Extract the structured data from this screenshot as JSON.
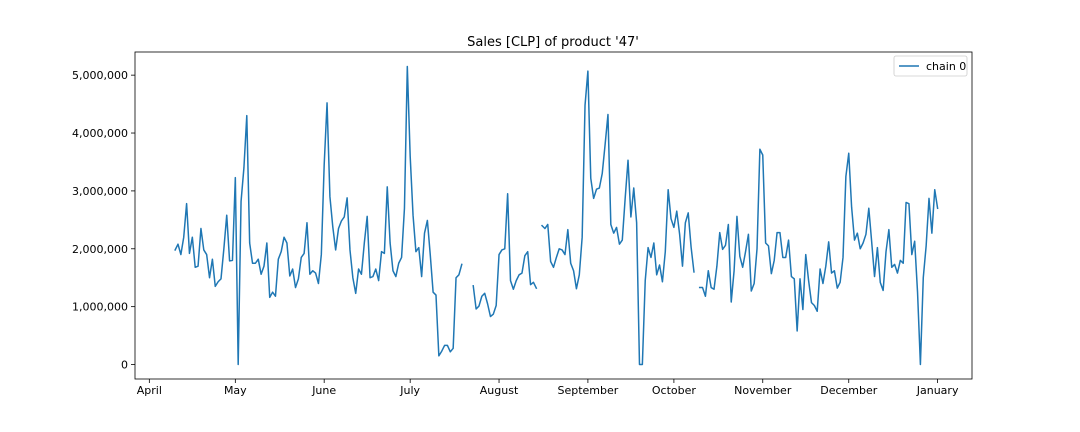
{
  "chart_data": {
    "type": "line",
    "title": "Sales [CLP] of product '47'",
    "xlabel": "",
    "ylabel": "",
    "x_ticks": [
      "April",
      "May",
      "June",
      "July",
      "August",
      "September",
      "October",
      "November",
      "December",
      "January"
    ],
    "y_ticks": [
      "0",
      "1,000,000",
      "2,000,000",
      "3,000,000",
      "4,000,000",
      "5,000,000"
    ],
    "y_tick_values": [
      0,
      1000000,
      2000000,
      3000000,
      4000000,
      5000000
    ],
    "xlim": [
      "2020-03-27",
      "2021-01-13"
    ],
    "ylim": [
      -250000,
      5400000
    ],
    "grid": false,
    "legend_position": "top-right",
    "colors": {
      "series": "#1f77b4",
      "axes": "#000000",
      "background": "#ffffff"
    },
    "series": [
      {
        "name": "chain 0",
        "points": [
          [
            "2020-04-10",
            1980000
          ],
          [
            "2020-04-11",
            2080000
          ],
          [
            "2020-04-12",
            1900000
          ],
          [
            "2020-04-13",
            2200000
          ],
          [
            "2020-04-14",
            2780000
          ],
          [
            "2020-04-15",
            1920000
          ],
          [
            "2020-04-16",
            2200000
          ],
          [
            "2020-04-17",
            1680000
          ],
          [
            "2020-04-18",
            1700000
          ],
          [
            "2020-04-19",
            2350000
          ],
          [
            "2020-04-20",
            1980000
          ],
          [
            "2020-04-21",
            1900000
          ],
          [
            "2020-04-22",
            1500000
          ],
          [
            "2020-04-23",
            1820000
          ],
          [
            "2020-04-24",
            1350000
          ],
          [
            "2020-04-25",
            1430000
          ],
          [
            "2020-04-26",
            1480000
          ],
          [
            "2020-04-27",
            2000000
          ],
          [
            "2020-04-28",
            2580000
          ],
          [
            "2020-04-29",
            1790000
          ],
          [
            "2020-04-30",
            1800000
          ],
          [
            "2020-05-01",
            3230000
          ],
          [
            "2020-05-02",
            0
          ],
          [
            "2020-05-03",
            2820000
          ],
          [
            "2020-05-04",
            3400000
          ],
          [
            "2020-05-05",
            4300000
          ],
          [
            "2020-05-06",
            2100000
          ],
          [
            "2020-05-07",
            1750000
          ],
          [
            "2020-05-08",
            1750000
          ],
          [
            "2020-05-09",
            1820000
          ],
          [
            "2020-05-10",
            1560000
          ],
          [
            "2020-05-11",
            1700000
          ],
          [
            "2020-05-12",
            2100000
          ],
          [
            "2020-05-13",
            1160000
          ],
          [
            "2020-05-14",
            1250000
          ],
          [
            "2020-05-15",
            1180000
          ],
          [
            "2020-05-16",
            1820000
          ],
          [
            "2020-05-17",
            1950000
          ],
          [
            "2020-05-18",
            2200000
          ],
          [
            "2020-05-19",
            2100000
          ],
          [
            "2020-05-20",
            1530000
          ],
          [
            "2020-05-21",
            1650000
          ],
          [
            "2020-05-22",
            1330000
          ],
          [
            "2020-05-23",
            1480000
          ],
          [
            "2020-05-24",
            1850000
          ],
          [
            "2020-05-25",
            1920000
          ],
          [
            "2020-05-26",
            2450000
          ],
          [
            "2020-05-27",
            1560000
          ],
          [
            "2020-05-28",
            1620000
          ],
          [
            "2020-05-29",
            1580000
          ],
          [
            "2020-05-30",
            1400000
          ],
          [
            "2020-05-31",
            1900000
          ],
          [
            "2020-06-01",
            3450000
          ],
          [
            "2020-06-02",
            4520000
          ],
          [
            "2020-06-03",
            2900000
          ],
          [
            "2020-06-04",
            2380000
          ],
          [
            "2020-06-05",
            1980000
          ],
          [
            "2020-06-06",
            2350000
          ],
          [
            "2020-06-07",
            2480000
          ],
          [
            "2020-06-08",
            2550000
          ],
          [
            "2020-06-09",
            2880000
          ],
          [
            "2020-06-10",
            1980000
          ],
          [
            "2020-06-11",
            1500000
          ],
          [
            "2020-06-12",
            1230000
          ],
          [
            "2020-06-13",
            1650000
          ],
          [
            "2020-06-14",
            1560000
          ],
          [
            "2020-06-15",
            2100000
          ],
          [
            "2020-06-16",
            2560000
          ],
          [
            "2020-06-17",
            1500000
          ],
          [
            "2020-06-18",
            1520000
          ],
          [
            "2020-06-19",
            1650000
          ],
          [
            "2020-06-20",
            1450000
          ],
          [
            "2020-06-21",
            1950000
          ],
          [
            "2020-06-22",
            1920000
          ],
          [
            "2020-06-23",
            3070000
          ],
          [
            "2020-06-24",
            2100000
          ],
          [
            "2020-06-25",
            1620000
          ],
          [
            "2020-06-26",
            1520000
          ],
          [
            "2020-06-27",
            1750000
          ],
          [
            "2020-06-28",
            1850000
          ],
          [
            "2020-06-29",
            2700000
          ],
          [
            "2020-06-30",
            5150000
          ],
          [
            "2020-07-01",
            3600000
          ],
          [
            "2020-07-02",
            2580000
          ],
          [
            "2020-07-03",
            1950000
          ],
          [
            "2020-07-04",
            2020000
          ],
          [
            "2020-07-05",
            1520000
          ],
          [
            "2020-07-06",
            2270000
          ],
          [
            "2020-07-07",
            2490000
          ],
          [
            "2020-07-08",
            1900000
          ],
          [
            "2020-07-09",
            1250000
          ],
          [
            "2020-07-10",
            1200000
          ],
          [
            "2020-07-11",
            150000
          ],
          [
            "2020-07-12",
            230000
          ],
          [
            "2020-07-13",
            330000
          ],
          [
            "2020-07-14",
            330000
          ],
          [
            "2020-07-15",
            220000
          ],
          [
            "2020-07-16",
            280000
          ],
          [
            "2020-07-17",
            1500000
          ],
          [
            "2020-07-18",
            1550000
          ],
          [
            "2020-07-19",
            1730000
          ],
          [
            "2020-07-23",
            1360000
          ],
          [
            "2020-07-24",
            960000
          ],
          [
            "2020-07-25",
            1010000
          ],
          [
            "2020-07-26",
            1180000
          ],
          [
            "2020-07-27",
            1230000
          ],
          [
            "2020-07-28",
            1050000
          ],
          [
            "2020-07-29",
            830000
          ],
          [
            "2020-07-30",
            870000
          ],
          [
            "2020-07-31",
            1020000
          ],
          [
            "2020-08-01",
            1900000
          ],
          [
            "2020-08-02",
            1980000
          ],
          [
            "2020-08-03",
            2000000
          ],
          [
            "2020-08-04",
            2950000
          ],
          [
            "2020-08-05",
            1450000
          ],
          [
            "2020-08-06",
            1300000
          ],
          [
            "2020-08-07",
            1450000
          ],
          [
            "2020-08-08",
            1550000
          ],
          [
            "2020-08-09",
            1580000
          ],
          [
            "2020-08-10",
            1880000
          ],
          [
            "2020-08-11",
            1950000
          ],
          [
            "2020-08-12",
            1380000
          ],
          [
            "2020-08-13",
            1420000
          ],
          [
            "2020-08-14",
            1320000
          ],
          [
            "2020-08-16",
            2400000
          ],
          [
            "2020-08-17",
            2350000
          ],
          [
            "2020-08-18",
            2420000
          ],
          [
            "2020-08-19",
            1780000
          ],
          [
            "2020-08-20",
            1680000
          ],
          [
            "2020-08-21",
            1850000
          ],
          [
            "2020-08-22",
            2000000
          ],
          [
            "2020-08-23",
            1980000
          ],
          [
            "2020-08-24",
            1900000
          ],
          [
            "2020-08-25",
            2330000
          ],
          [
            "2020-08-26",
            1750000
          ],
          [
            "2020-08-27",
            1620000
          ],
          [
            "2020-08-28",
            1310000
          ],
          [
            "2020-08-29",
            1550000
          ],
          [
            "2020-08-30",
            2200000
          ],
          [
            "2020-08-31",
            4480000
          ],
          [
            "2020-09-01",
            5070000
          ],
          [
            "2020-09-02",
            3220000
          ],
          [
            "2020-09-03",
            2870000
          ],
          [
            "2020-09-04",
            3030000
          ],
          [
            "2020-09-05",
            3050000
          ],
          [
            "2020-09-06",
            3300000
          ],
          [
            "2020-09-07",
            3800000
          ],
          [
            "2020-09-08",
            4320000
          ],
          [
            "2020-09-09",
            2420000
          ],
          [
            "2020-09-10",
            2270000
          ],
          [
            "2020-09-11",
            2370000
          ],
          [
            "2020-09-12",
            2080000
          ],
          [
            "2020-09-13",
            2150000
          ],
          [
            "2020-09-14",
            2870000
          ],
          [
            "2020-09-15",
            3530000
          ],
          [
            "2020-09-16",
            2550000
          ],
          [
            "2020-09-17",
            3050000
          ],
          [
            "2020-09-18",
            2450000
          ],
          [
            "2020-09-19",
            0
          ],
          [
            "2020-09-20",
            0
          ],
          [
            "2020-09-21",
            1450000
          ],
          [
            "2020-09-22",
            2020000
          ],
          [
            "2020-09-23",
            1850000
          ],
          [
            "2020-09-24",
            2100000
          ],
          [
            "2020-09-25",
            1550000
          ],
          [
            "2020-09-26",
            1720000
          ],
          [
            "2020-09-27",
            1430000
          ],
          [
            "2020-09-28",
            1950000
          ],
          [
            "2020-09-29",
            3020000
          ],
          [
            "2020-09-30",
            2520000
          ],
          [
            "2020-10-01",
            2370000
          ],
          [
            "2020-10-02",
            2650000
          ],
          [
            "2020-10-03",
            2250000
          ],
          [
            "2020-10-04",
            1700000
          ],
          [
            "2020-10-05",
            2450000
          ],
          [
            "2020-10-06",
            2620000
          ],
          [
            "2020-10-07",
            2030000
          ],
          [
            "2020-10-08",
            1600000
          ],
          [
            "2020-10-10",
            1330000
          ],
          [
            "2020-10-11",
            1330000
          ],
          [
            "2020-10-12",
            1180000
          ],
          [
            "2020-10-13",
            1620000
          ],
          [
            "2020-10-14",
            1330000
          ],
          [
            "2020-10-15",
            1300000
          ],
          [
            "2020-10-16",
            1700000
          ],
          [
            "2020-10-17",
            2280000
          ],
          [
            "2020-10-18",
            1990000
          ],
          [
            "2020-10-19",
            2060000
          ],
          [
            "2020-10-20",
            2420000
          ],
          [
            "2020-10-21",
            1080000
          ],
          [
            "2020-10-22",
            1620000
          ],
          [
            "2020-10-23",
            2560000
          ],
          [
            "2020-10-24",
            1870000
          ],
          [
            "2020-10-25",
            1680000
          ],
          [
            "2020-10-26",
            1950000
          ],
          [
            "2020-10-27",
            2250000
          ],
          [
            "2020-10-28",
            1270000
          ],
          [
            "2020-10-29",
            1400000
          ],
          [
            "2020-10-30",
            2000000
          ],
          [
            "2020-10-31",
            3720000
          ],
          [
            "2020-11-01",
            3620000
          ],
          [
            "2020-11-02",
            2100000
          ],
          [
            "2020-11-03",
            2050000
          ],
          [
            "2020-11-04",
            1570000
          ],
          [
            "2020-11-05",
            1800000
          ],
          [
            "2020-11-06",
            2280000
          ],
          [
            "2020-11-07",
            2280000
          ],
          [
            "2020-11-08",
            1850000
          ],
          [
            "2020-11-09",
            1850000
          ],
          [
            "2020-11-10",
            2150000
          ],
          [
            "2020-11-11",
            1520000
          ],
          [
            "2020-11-12",
            1480000
          ],
          [
            "2020-11-13",
            580000
          ],
          [
            "2020-11-14",
            1480000
          ],
          [
            "2020-11-15",
            950000
          ],
          [
            "2020-11-16",
            1900000
          ],
          [
            "2020-11-17",
            1450000
          ],
          [
            "2020-11-18",
            1070000
          ],
          [
            "2020-11-19",
            1020000
          ],
          [
            "2020-11-20",
            920000
          ],
          [
            "2020-11-21",
            1650000
          ],
          [
            "2020-11-22",
            1400000
          ],
          [
            "2020-11-23",
            1700000
          ],
          [
            "2020-11-24",
            2120000
          ],
          [
            "2020-11-25",
            1580000
          ],
          [
            "2020-11-26",
            1620000
          ],
          [
            "2020-11-27",
            1320000
          ],
          [
            "2020-11-28",
            1420000
          ],
          [
            "2020-11-29",
            1850000
          ],
          [
            "2020-11-30",
            3250000
          ],
          [
            "2020-12-01",
            3650000
          ],
          [
            "2020-12-02",
            2720000
          ],
          [
            "2020-12-03",
            2150000
          ],
          [
            "2020-12-04",
            2270000
          ],
          [
            "2020-12-05",
            2000000
          ],
          [
            "2020-12-06",
            2100000
          ],
          [
            "2020-12-07",
            2250000
          ],
          [
            "2020-12-08",
            2700000
          ],
          [
            "2020-12-09",
            2120000
          ],
          [
            "2020-12-10",
            1520000
          ],
          [
            "2020-12-11",
            2020000
          ],
          [
            "2020-12-12",
            1420000
          ],
          [
            "2020-12-13",
            1280000
          ],
          [
            "2020-12-14",
            1950000
          ],
          [
            "2020-12-15",
            2330000
          ],
          [
            "2020-12-16",
            1680000
          ],
          [
            "2020-12-17",
            1730000
          ],
          [
            "2020-12-18",
            1580000
          ],
          [
            "2020-12-19",
            1800000
          ],
          [
            "2020-12-20",
            1750000
          ],
          [
            "2020-12-21",
            2800000
          ],
          [
            "2020-12-22",
            2780000
          ],
          [
            "2020-12-23",
            1900000
          ],
          [
            "2020-12-24",
            2130000
          ],
          [
            "2020-12-25",
            1250000
          ],
          [
            "2020-12-26",
            0
          ],
          [
            "2020-12-27",
            1500000
          ],
          [
            "2020-12-28",
            2050000
          ],
          [
            "2020-12-29",
            2870000
          ],
          [
            "2020-12-30",
            2270000
          ],
          [
            "2020-12-31",
            3020000
          ],
          [
            "2021-01-01",
            2700000
          ]
        ]
      }
    ]
  }
}
